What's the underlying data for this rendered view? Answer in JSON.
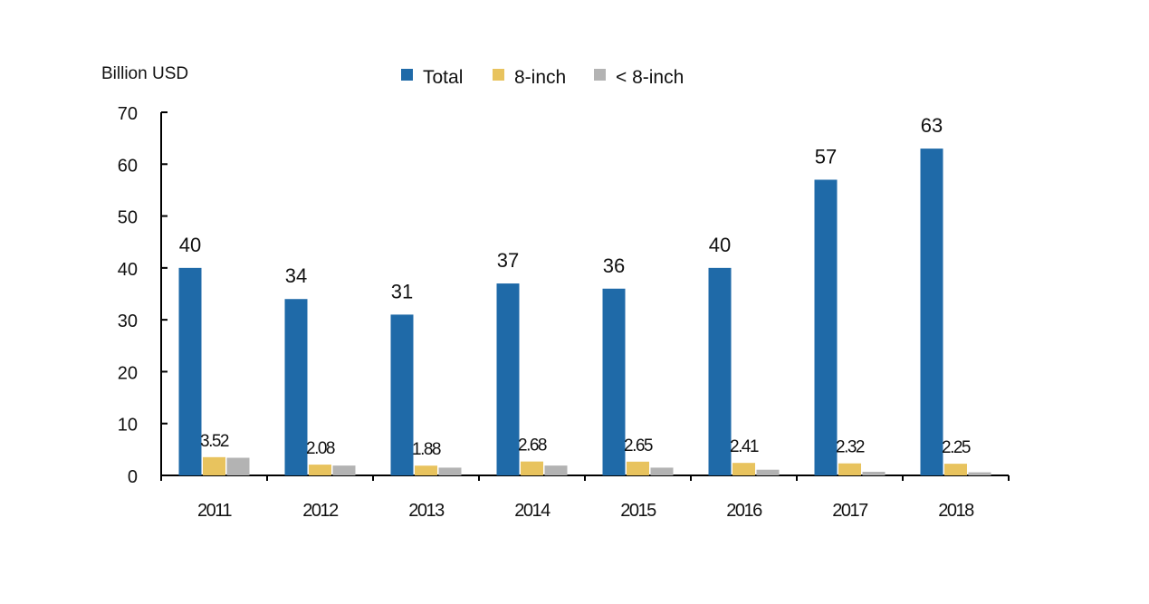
{
  "chart_data": {
    "type": "bar",
    "unit_label": "Billion USD",
    "categories": [
      "2011",
      "2012",
      "2013",
      "2014",
      "2015",
      "2016",
      "2017",
      "2018"
    ],
    "series": [
      {
        "name": "Total",
        "color": "#1f6aa8",
        "values": [
          40,
          34,
          31,
          37,
          36,
          40,
          57,
          63
        ],
        "labels": [
          "40",
          "34",
          "31",
          "37",
          "36",
          "40",
          "57",
          "63"
        ]
      },
      {
        "name": "8-inch",
        "color": "#e8c35e",
        "values": [
          3.52,
          2.08,
          1.88,
          2.68,
          2.65,
          2.41,
          2.32,
          2.25
        ],
        "labels": [
          "3.52",
          "2.08",
          "1.88",
          "2.68",
          "2.65",
          "2.41",
          "2.32",
          "2.25"
        ]
      },
      {
        "name": "< 8-inch",
        "color": "#b3b3b3",
        "values": [
          3.4,
          1.9,
          1.5,
          1.9,
          1.5,
          1.1,
          0.7,
          0.6
        ]
      }
    ],
    "ylim": [
      0,
      70
    ],
    "yticks": [
      "0",
      "10",
      "20",
      "30",
      "40",
      "50",
      "60",
      "70"
    ],
    "legend_position": "top",
    "grid": false
  }
}
